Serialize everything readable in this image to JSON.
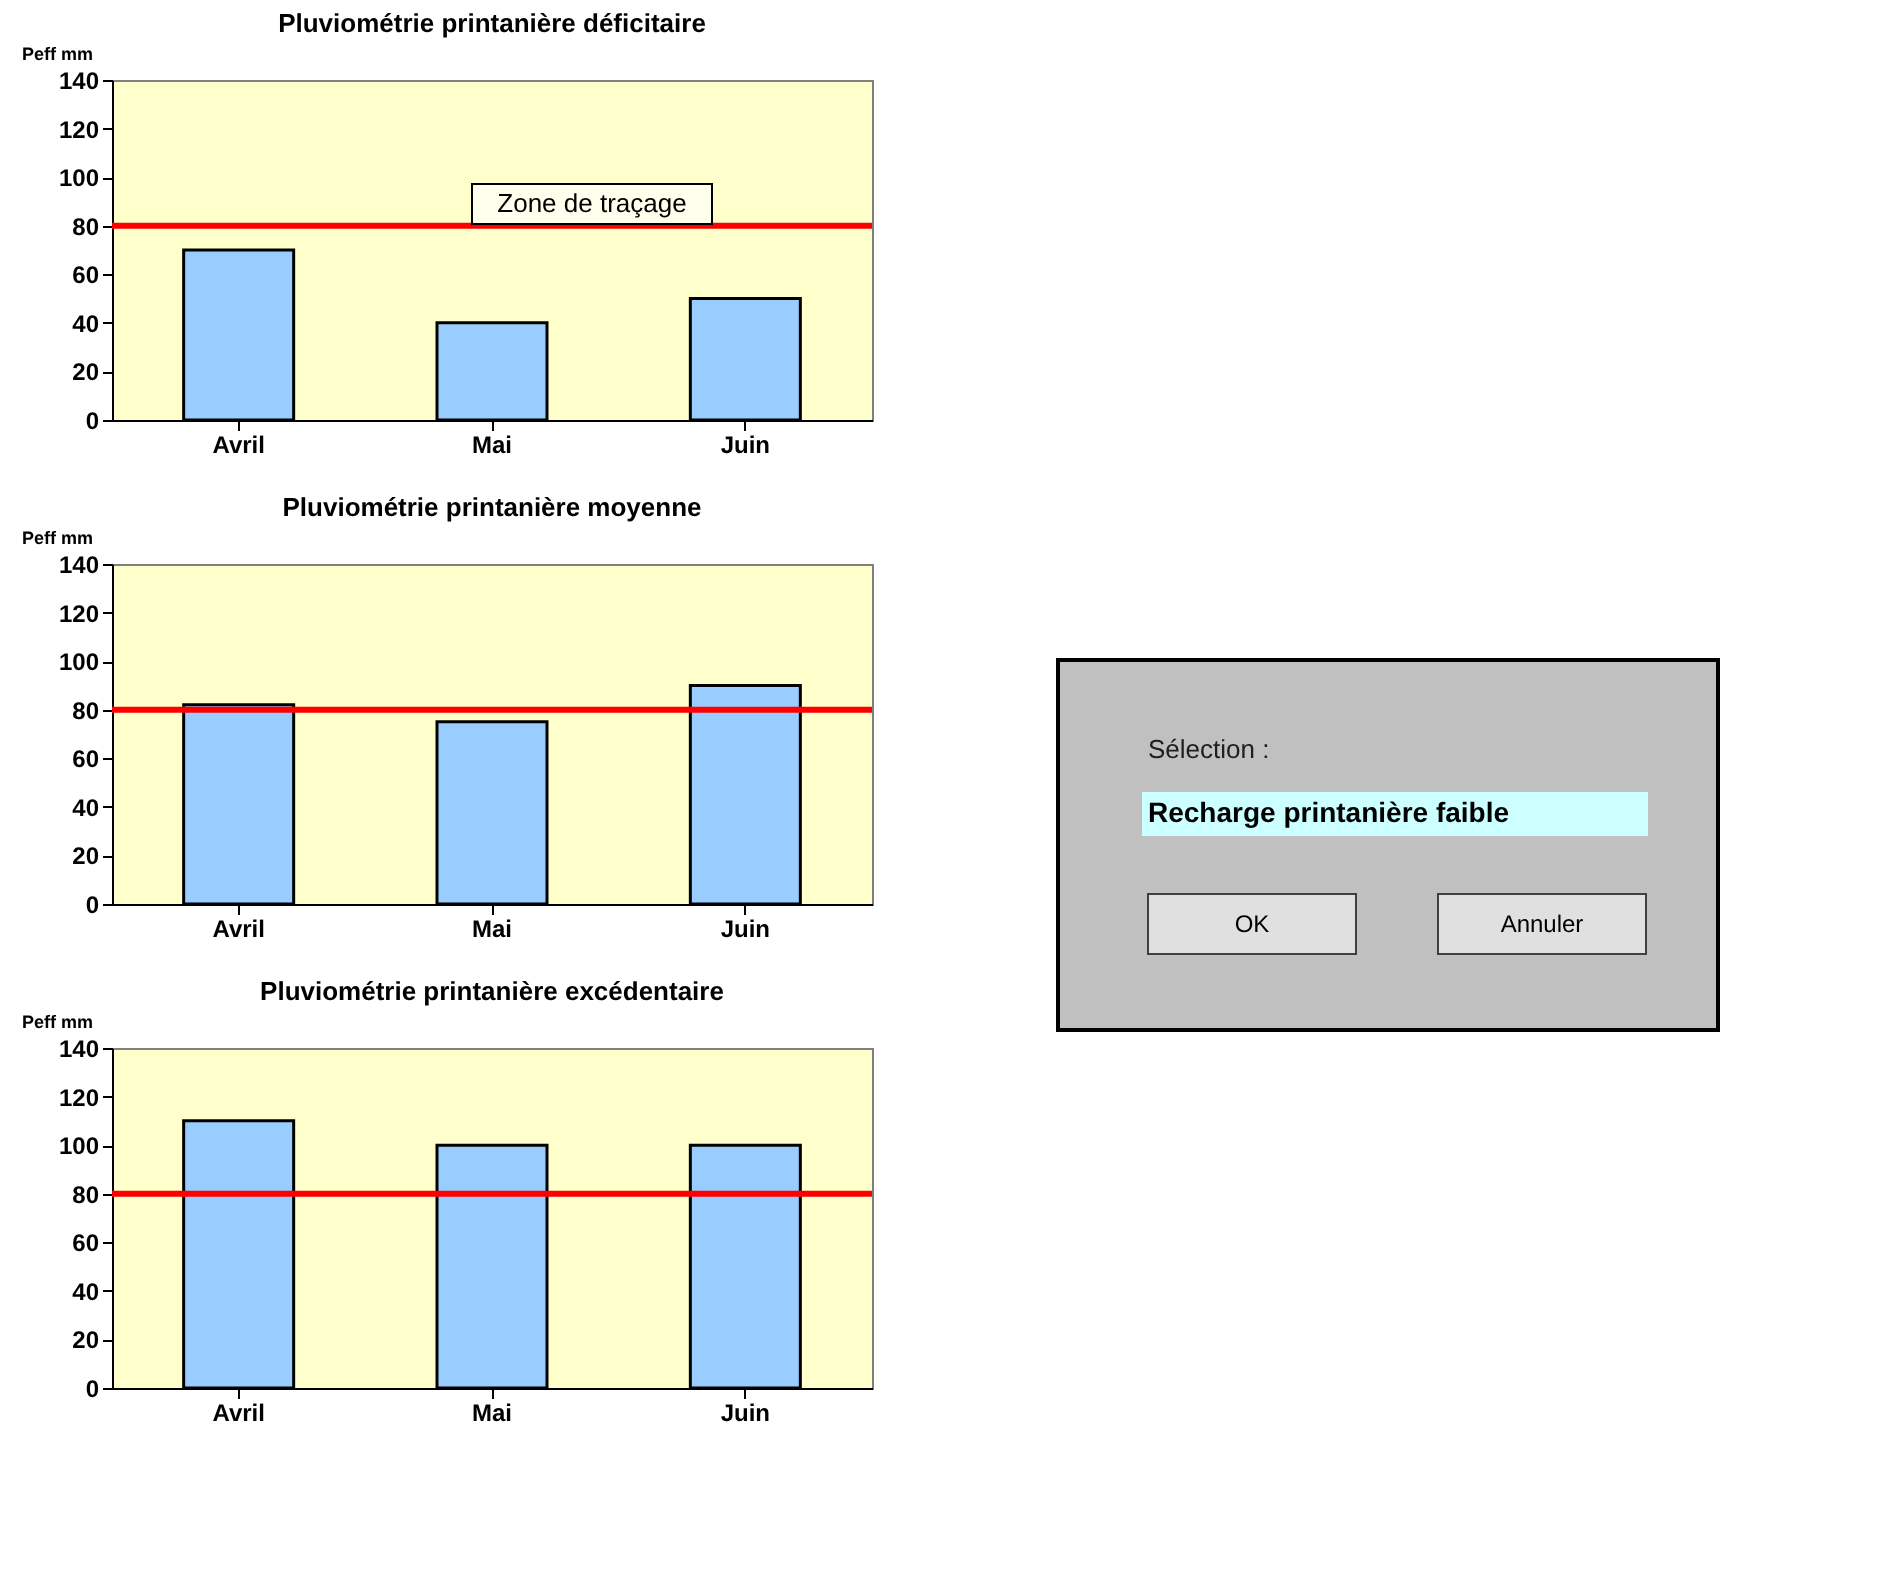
{
  "chart_data": [
    {
      "type": "bar",
      "title": "Pluviométrie printanière déficitaire",
      "ylabel": "Peff mm",
      "categories": [
        "Avril",
        "Mai",
        "Juin"
      ],
      "series": [
        {
          "color": "#99ccff",
          "values": [
            70,
            40,
            50
          ]
        }
      ],
      "ylim": [
        0,
        140
      ],
      "yticks": [
        0,
        20,
        40,
        60,
        80,
        100,
        120,
        140
      ],
      "ref_lines": [
        {
          "axis": "y",
          "value": 80,
          "color": "#ff0000"
        }
      ],
      "annotations": [
        "Zone de traçage"
      ]
    },
    {
      "type": "bar",
      "title": "Pluviométrie printanière moyenne",
      "ylabel": "Peff mm",
      "categories": [
        "Avril",
        "Mai",
        "Juin"
      ],
      "series": [
        {
          "color": "#99ccff",
          "values": [
            82,
            75,
            90
          ]
        }
      ],
      "ylim": [
        0,
        140
      ],
      "yticks": [
        0,
        20,
        40,
        60,
        80,
        100,
        120,
        140
      ],
      "ref_lines": [
        {
          "axis": "y",
          "value": 80,
          "color": "#ff0000"
        }
      ]
    },
    {
      "type": "bar",
      "title": "Pluviométrie printanière excédentaire",
      "ylabel": "Peff mm",
      "categories": [
        "Avril",
        "Mai",
        "Juin"
      ],
      "series": [
        {
          "color": "#99ccff",
          "values": [
            110,
            100,
            100
          ]
        }
      ],
      "ylim": [
        0,
        140
      ],
      "yticks": [
        0,
        20,
        40,
        60,
        80,
        100,
        120,
        140
      ],
      "ref_lines": [
        {
          "axis": "y",
          "value": 80,
          "color": "#ff0000"
        }
      ]
    },
    {
      "type": "other",
      "annotations": [
        "Sélection :",
        "Recharge printanière faible",
        "OK",
        "Annuler"
      ]
    }
  ]
}
